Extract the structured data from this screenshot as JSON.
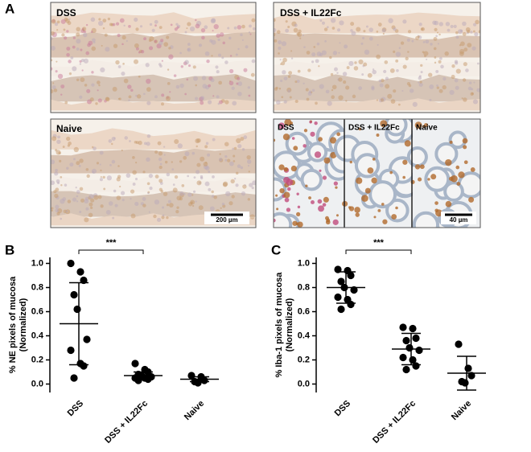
{
  "panel_a": {
    "label": "A",
    "images": [
      {
        "label": "DSS"
      },
      {
        "label": "DSS + IL22Fc"
      },
      {
        "label": "Naive"
      }
    ],
    "inset_labels": [
      "DSS",
      "DSS + IL22Fc",
      "Naive"
    ],
    "scale_bars": [
      "200 µm",
      "40 µm"
    ]
  },
  "chart_data": [
    {
      "type": "dot",
      "panel": "B",
      "ylabel": [
        "% NE pixels of mucosa",
        "(Normalized)"
      ],
      "categories": [
        "DSS",
        "DSS + IL22Fc",
        "Naive"
      ],
      "points": [
        [
          1.0,
          0.93,
          0.86,
          0.74,
          0.62,
          0.37,
          0.28,
          0.17,
          0.15,
          0.05
        ],
        [
          0.17,
          0.12,
          0.1,
          0.08,
          0.07,
          0.06,
          0.05,
          0.05,
          0.04,
          0.03
        ],
        [
          0.07,
          0.06,
          0.03,
          0.02,
          0.01
        ]
      ],
      "means": [
        0.5,
        0.07,
        0.04
      ],
      "sds": [
        0.34,
        0.03,
        0.02
      ],
      "significance": {
        "from": "DSS",
        "to": "DSS + IL22Fc",
        "label": "***"
      },
      "ylim": [
        -0.07,
        1.05
      ],
      "yticks": [
        {
          "value": 0,
          "label": "0.0"
        },
        0.2,
        0.4,
        0.6,
        0.8,
        {
          "value": 1,
          "label": "1.0"
        }
      ],
      "color": "#000000"
    },
    {
      "type": "dot",
      "panel": "C",
      "ylabel": [
        "% Iba-1 pixels of mucosa",
        "(Normalized)"
      ],
      "categories": [
        "DSS",
        "DSS + IL22Fc",
        "Naive"
      ],
      "points": [
        [
          0.95,
          0.94,
          0.9,
          0.85,
          0.8,
          0.78,
          0.72,
          0.7,
          0.66,
          0.62
        ],
        [
          0.47,
          0.46,
          0.38,
          0.36,
          0.3,
          0.28,
          0.22,
          0.2,
          0.15,
          0.12
        ],
        [
          0.33,
          0.13,
          0.07,
          0.02,
          0.01
        ]
      ],
      "means": [
        0.8,
        0.29,
        0.09
      ],
      "sds": [
        0.13,
        0.13,
        0.14
      ],
      "significance": {
        "from": "DSS",
        "to": "DSS + IL22Fc",
        "label": "***"
      },
      "ylim": [
        -0.07,
        1.05
      ],
      "yticks": [
        {
          "value": 0,
          "label": "0.0"
        },
        0.2,
        0.4,
        0.6,
        0.8,
        {
          "value": 1,
          "label": "1.0"
        }
      ],
      "color": "#000000"
    }
  ]
}
